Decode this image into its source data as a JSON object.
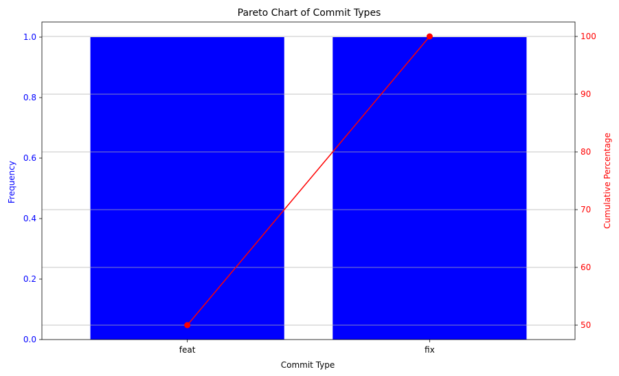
{
  "chart_data": {
    "type": "bar",
    "title": "Pareto Chart of Commit Types",
    "xlabel": "Commit Type",
    "ylabel": "Frequency",
    "y2label": "Cumulative Percentage",
    "categories": [
      "feat",
      "fix"
    ],
    "series": [
      {
        "type": "bar",
        "axis": "left",
        "values": [
          1,
          1
        ],
        "color": "#0000ff"
      },
      {
        "type": "line",
        "axis": "right",
        "values": [
          50,
          100
        ],
        "color": "#ff0000",
        "marker": "circle"
      }
    ],
    "ylim": [
      0,
      1.05
    ],
    "y2lim": [
      47.5,
      102.5
    ],
    "yticks": [
      0.0,
      0.2,
      0.4,
      0.6,
      0.8,
      1.0
    ],
    "ytick_labels": [
      "0.0",
      "0.2",
      "0.4",
      "0.6",
      "0.8",
      "1.0"
    ],
    "y2ticks": [
      50,
      60,
      70,
      80,
      90,
      100
    ],
    "y2tick_labels": [
      "50",
      "60",
      "70",
      "80",
      "90",
      "100"
    ],
    "grid": "horizontal-right-axis",
    "left_axis_color": "#0000ff",
    "right_axis_color": "#ff0000"
  }
}
